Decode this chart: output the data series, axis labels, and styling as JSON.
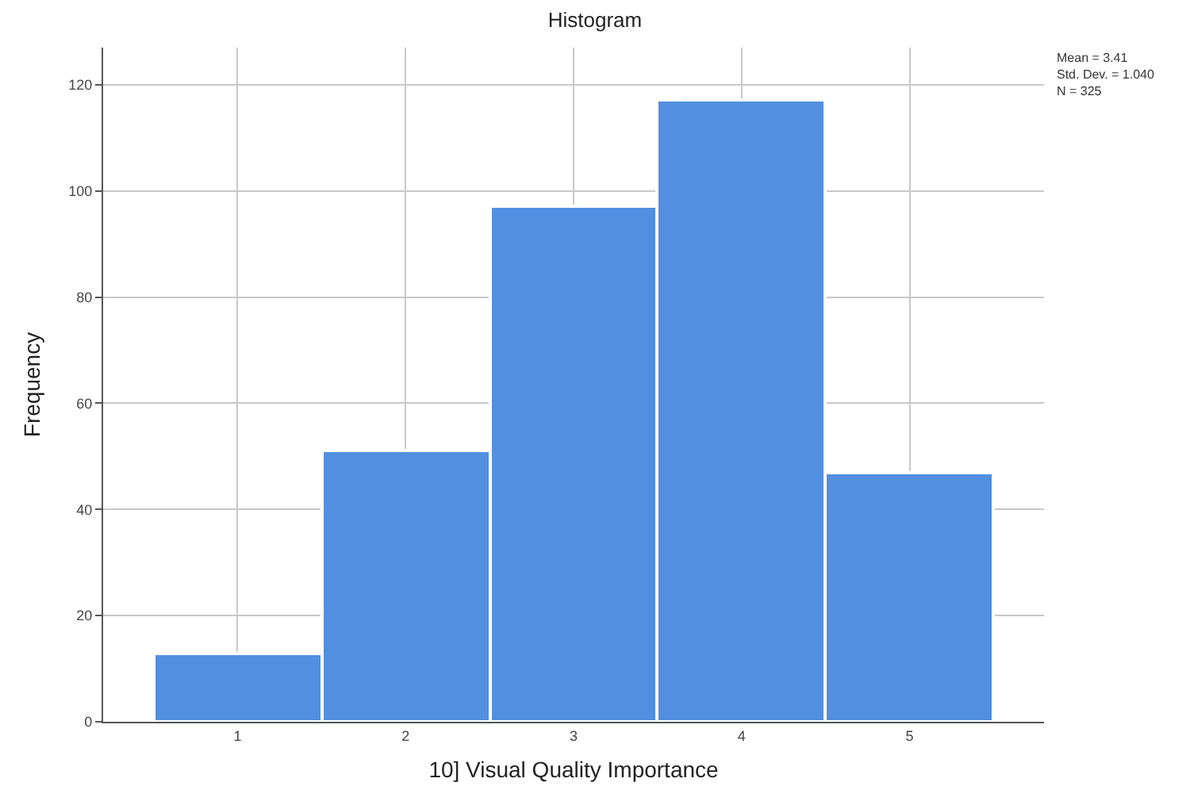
{
  "chart_data": {
    "type": "histogram",
    "title": "Histogram",
    "xlabel": "10] Visual Quality Importance",
    "ylabel": "Frequency",
    "bins": [
      0.5,
      1.5,
      2.5,
      3.5,
      4.5,
      5.5
    ],
    "values": [
      13,
      51,
      97,
      117,
      47
    ],
    "color": "#528fe0",
    "xlim": [
      0.2,
      5.8
    ],
    "xticks": [
      1,
      2,
      3,
      4,
      5
    ],
    "ylim": [
      0,
      127
    ],
    "yticks": [
      0,
      20,
      40,
      60,
      80,
      100,
      120
    ],
    "grid": true,
    "annotations": [
      "Mean = 3.41",
      "Std. Dev. = 1.040",
      "N = 325"
    ]
  }
}
